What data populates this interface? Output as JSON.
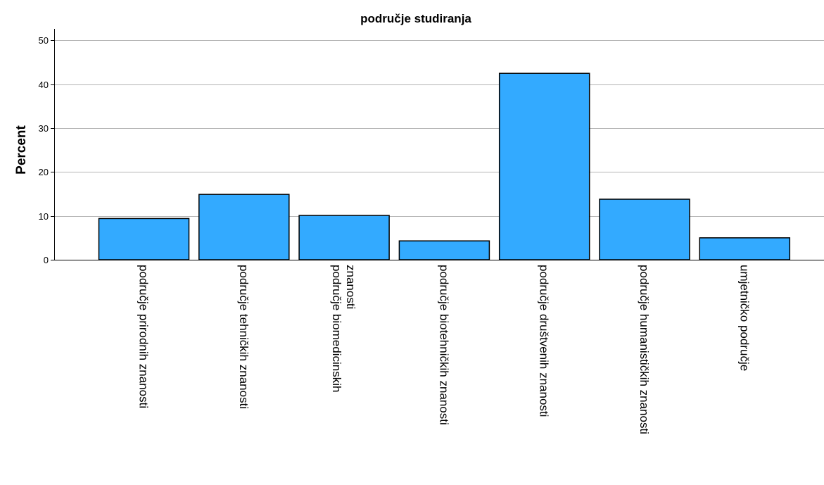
{
  "chart_data": {
    "type": "bar",
    "title": "područje studiranja",
    "xlabel": "",
    "ylabel": "Percent",
    "ylim": [
      0,
      52
    ],
    "yticks": [
      0,
      10,
      20,
      30,
      40,
      50
    ],
    "grid": "horizontal",
    "categories": [
      [
        "područje prirodnih znanosti"
      ],
      [
        "područje tehničkih znanosti"
      ],
      [
        "područje biomedicinskih",
        "znanosti"
      ],
      [
        "područje biotehničkih znanosti"
      ],
      [
        "područje društvenih znanosti"
      ],
      [
        "područje humanističkih znanosti"
      ],
      [
        "umjetničko područje"
      ]
    ],
    "values": [
      9.4,
      14.9,
      10.1,
      4.3,
      42.5,
      13.8,
      5.0
    ],
    "colors": {
      "bar_fill": "#33aaff",
      "bar_stroke": "#000000",
      "grid": "#b4b4b4",
      "axis": "#000000"
    }
  }
}
